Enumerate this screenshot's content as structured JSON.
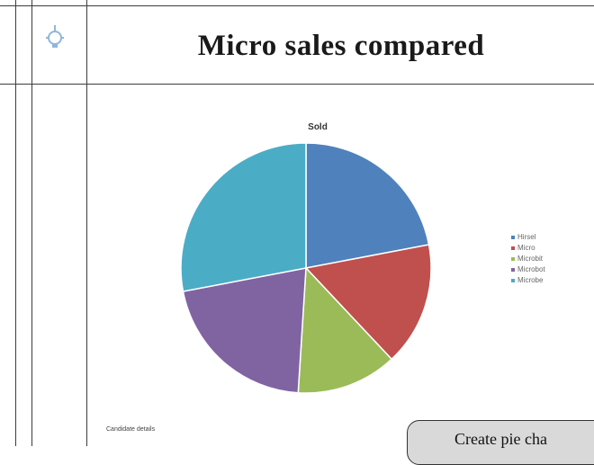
{
  "page": {
    "title": "Micro sales compared",
    "callout_text": "Create pie cha",
    "footnote": "Candidate details"
  },
  "icons": {
    "header": "light-bulb-icon"
  },
  "colors": {
    "grid_line": "#3c3c3c",
    "callout_bg": "#d9d9d9",
    "icon": "#8fb7dd"
  },
  "chart_data": {
    "type": "pie",
    "title": "Sold",
    "categories": [
      "Hirsel",
      "Micro",
      "Microbit",
      "Microbot",
      "Microbe"
    ],
    "values": [
      22,
      16,
      13,
      21,
      28
    ],
    "colors": [
      "#4f81bd",
      "#c0504d",
      "#9bbb59",
      "#8064a2",
      "#4bacc6"
    ],
    "start_angle_deg": 0,
    "direction": "clockwise",
    "legend_position": "right"
  }
}
